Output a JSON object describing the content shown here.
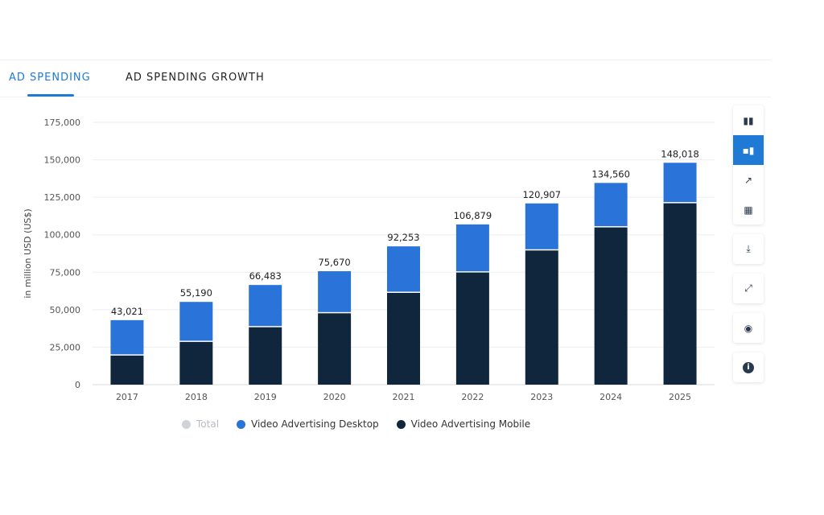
{
  "tabs": [
    {
      "label": "AD SPENDING",
      "active": true
    },
    {
      "label": "AD SPENDING GROWTH",
      "active": false
    }
  ],
  "toolbar": {
    "icons": [
      "bar-chart-icon",
      "stacked-bar-icon",
      "line-chart-icon",
      "table-icon",
      "download-icon",
      "expand-icon",
      "hide-icon",
      "info-icon"
    ],
    "active": "stacked-bar-icon"
  },
  "colors": {
    "accent": "#1f7ad6",
    "desktop": "#2a74d9",
    "mobile": "#10263d",
    "total": "#cfd3d8"
  },
  "chart_data": {
    "type": "bar",
    "stacked": true,
    "ylabel": "in million USD (US$)",
    "ylim": [
      0,
      175000
    ],
    "yticks": [
      "0",
      "25,000",
      "50,000",
      "75,000",
      "100,000",
      "125,000",
      "150,000",
      "175,000"
    ],
    "grid": true,
    "legend_position": "bottom",
    "categories": [
      "2017",
      "2018",
      "2019",
      "2020",
      "2021",
      "2022",
      "2023",
      "2024",
      "2025"
    ],
    "totals": [
      43021,
      55190,
      66483,
      75670,
      92253,
      106879,
      120907,
      134560,
      148018
    ],
    "total_labels": [
      "43,021",
      "55,190",
      "66,483",
      "75,670",
      "92,253",
      "106,879",
      "120,907",
      "134,560",
      "148,018"
    ],
    "series": [
      {
        "name": "Video Advertising Mobile",
        "values": [
          19400,
          28500,
          38300,
          47600,
          61200,
          74800,
          89500,
          104900,
          121000
        ]
      },
      {
        "name": "Video Advertising Desktop",
        "values": [
          23621,
          26690,
          28183,
          28070,
          31053,
          32079,
          31407,
          29660,
          27018
        ]
      }
    ],
    "legend": [
      {
        "name": "Total",
        "color": "#cfd3d8",
        "muted": true
      },
      {
        "name": "Video Advertising Desktop",
        "color": "#2a74d9"
      },
      {
        "name": "Video Advertising Mobile",
        "color": "#10263d"
      }
    ]
  }
}
